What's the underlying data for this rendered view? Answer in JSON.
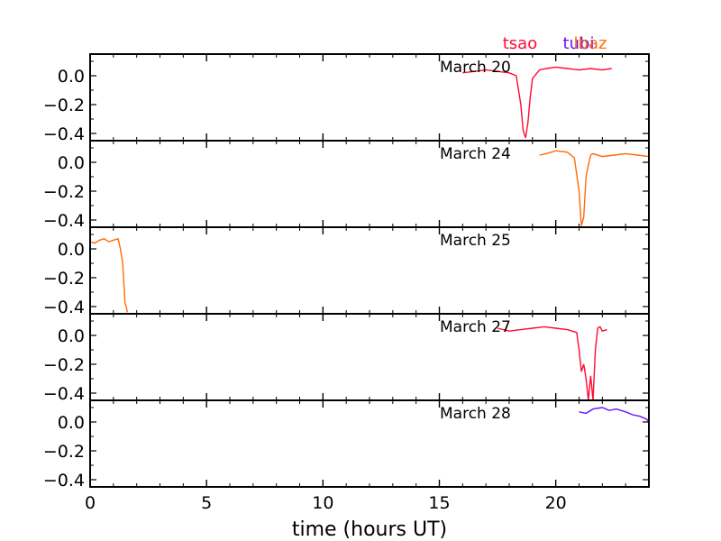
{
  "chart_data": {
    "type": "line",
    "xlabel": "time (hours UT)",
    "xlim": [
      0,
      24
    ],
    "ylim": [
      -0.45,
      0.15
    ],
    "x_ticks": [
      0,
      5,
      10,
      15,
      20
    ],
    "y_ticks": [
      0.0,
      -0.2,
      -0.4
    ],
    "y_tick_labels": [
      "0.0",
      "−0.2",
      "−0.4"
    ],
    "legend": [
      {
        "name": "tsao",
        "color": "#ff0a30"
      },
      {
        "name": "tubi",
        "color": "#6a10ff"
      },
      {
        "name": "lbaz",
        "color": "#ff6a0a"
      }
    ],
    "panels": [
      {
        "label": "March 20",
        "series": [
          {
            "name": "tsao",
            "color": "#ff0a30",
            "x": [
              16.0,
              16.5,
              17.0,
              17.5,
              18.0,
              18.3,
              18.5,
              18.6,
              18.7,
              18.8,
              18.9,
              19.0,
              19.3,
              19.6,
              20.0,
              20.5,
              21.0,
              21.5,
              22.0,
              22.4
            ],
            "y": [
              0.02,
              0.03,
              0.04,
              0.03,
              0.02,
              0.0,
              -0.2,
              -0.38,
              -0.43,
              -0.33,
              -0.15,
              -0.02,
              0.04,
              0.05,
              0.06,
              0.05,
              0.04,
              0.05,
              0.04,
              0.05
            ]
          }
        ]
      },
      {
        "label": "March 24",
        "series": [
          {
            "name": "lbaz",
            "color": "#ff6a0a",
            "x": [
              19.3,
              19.6,
              20.0,
              20.5,
              20.8,
              21.0,
              21.1,
              21.2,
              21.3,
              21.4,
              21.5,
              21.6,
              22.0,
              22.5,
              23.0,
              23.5,
              24.0
            ],
            "y": [
              0.05,
              0.06,
              0.08,
              0.07,
              0.03,
              -0.2,
              -0.44,
              -0.38,
              -0.1,
              -0.02,
              0.05,
              0.06,
              0.04,
              0.05,
              0.06,
              0.05,
              0.04
            ]
          }
        ]
      },
      {
        "label": "March 25",
        "series": [
          {
            "name": "lbaz",
            "color": "#ff6a0a",
            "x": [
              0.0,
              0.2,
              0.4,
              0.6,
              0.8,
              1.0,
              1.2,
              1.3,
              1.4,
              1.45,
              1.5,
              1.55,
              1.6
            ],
            "y": [
              0.05,
              0.04,
              0.06,
              0.07,
              0.05,
              0.06,
              0.07,
              0.0,
              -0.1,
              -0.25,
              -0.38,
              -0.4,
              -0.44
            ]
          }
        ]
      },
      {
        "label": "March 27",
        "series": [
          {
            "name": "tsao",
            "color": "#ff0a30",
            "x": [
              17.5,
              18.0,
              18.5,
              19.0,
              19.5,
              20.0,
              20.5,
              20.9,
              21.0,
              21.1,
              21.2,
              21.3,
              21.4,
              21.5,
              21.6,
              21.7,
              21.8,
              21.9,
              22.0,
              22.2
            ],
            "y": [
              0.05,
              0.03,
              0.04,
              0.05,
              0.06,
              0.05,
              0.04,
              0.02,
              -0.1,
              -0.25,
              -0.2,
              -0.3,
              -0.45,
              -0.28,
              -0.45,
              -0.1,
              0.05,
              0.06,
              0.03,
              0.04
            ]
          }
        ]
      },
      {
        "label": "March 28",
        "series": [
          {
            "name": "tubi",
            "color": "#6a10ff",
            "x": [
              21.0,
              21.3,
              21.6,
              22.0,
              22.3,
              22.6,
              23.0,
              23.3,
              23.6,
              23.9,
              24.0
            ],
            "y": [
              0.07,
              0.06,
              0.09,
              0.1,
              0.08,
              0.09,
              0.07,
              0.05,
              0.04,
              0.02,
              0.0
            ]
          }
        ]
      }
    ]
  }
}
